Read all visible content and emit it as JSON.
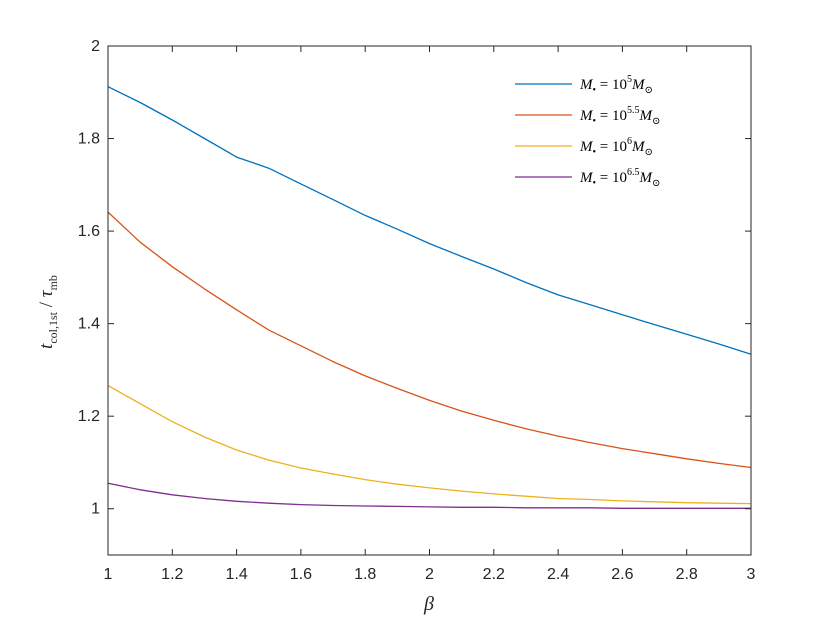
{
  "chart_data": {
    "type": "line",
    "title": "",
    "xlabel": "β",
    "ylabel": "t_col,1st / τ_mb",
    "xlim": [
      1,
      3
    ],
    "ylim": [
      0.9,
      2
    ],
    "x_ticks": [
      "1",
      "1.2",
      "1.4",
      "1.6",
      "1.8",
      "2",
      "2.2",
      "2.4",
      "2.6",
      "2.8",
      "3"
    ],
    "y_ticks": [
      "1",
      "1.2",
      "1.4",
      "1.6",
      "1.8",
      "2"
    ],
    "grid": false,
    "legend_position": "top-right",
    "x": [
      1.0,
      1.1,
      1.2,
      1.3,
      1.4,
      1.5,
      1.6,
      1.7,
      1.8,
      1.9,
      2.0,
      2.1,
      2.2,
      2.3,
      2.4,
      2.5,
      2.6,
      2.7,
      2.8,
      2.9,
      3.0
    ],
    "series": [
      {
        "name": "M• = 10^5 M⊙",
        "legend_base": "M",
        "legend_sub": "•",
        "legend_mid": " = 10",
        "legend_exp": "5",
        "legend_tail": "M",
        "legend_tail_sub": "⊙",
        "color": "#0072BD",
        "values": [
          1.912,
          1.878,
          1.84,
          1.8,
          1.76,
          1.736,
          1.702,
          1.668,
          1.634,
          1.604,
          1.573,
          1.545,
          1.518,
          1.489,
          1.462,
          1.441,
          1.419,
          1.398,
          1.377,
          1.356,
          1.334
        ]
      },
      {
        "name": "M• = 10^5.5 M⊙",
        "legend_base": "M",
        "legend_sub": "•",
        "legend_mid": " = 10",
        "legend_exp": "5.5",
        "legend_tail": "M",
        "legend_tail_sub": "⊙",
        "color": "#D95319",
        "values": [
          1.641,
          1.576,
          1.523,
          1.475,
          1.43,
          1.386,
          1.352,
          1.318,
          1.287,
          1.26,
          1.234,
          1.211,
          1.191,
          1.173,
          1.157,
          1.143,
          1.13,
          1.119,
          1.108,
          1.098,
          1.089
        ]
      },
      {
        "name": "M• = 10^6 M⊙",
        "legend_base": "M",
        "legend_sub": "•",
        "legend_mid": " = 10",
        "legend_exp": "6",
        "legend_tail": "M",
        "legend_tail_sub": "⊙",
        "color": "#EDB120",
        "values": [
          1.266,
          1.227,
          1.188,
          1.155,
          1.127,
          1.105,
          1.088,
          1.075,
          1.063,
          1.053,
          1.045,
          1.038,
          1.032,
          1.027,
          1.022,
          1.02,
          1.017,
          1.015,
          1.013,
          1.012,
          1.011
        ]
      },
      {
        "name": "M• = 10^6.5 M⊙",
        "legend_base": "M",
        "legend_sub": "•",
        "legend_mid": " = 10",
        "legend_exp": "6.5",
        "legend_tail": "M",
        "legend_tail_sub": "⊙",
        "color": "#7E2F8E",
        "values": [
          1.055,
          1.041,
          1.03,
          1.022,
          1.016,
          1.012,
          1.009,
          1.007,
          1.006,
          1.005,
          1.004,
          1.003,
          1.003,
          1.002,
          1.002,
          1.002,
          1.001,
          1.001,
          1.001,
          1.001,
          1.001
        ]
      }
    ]
  }
}
